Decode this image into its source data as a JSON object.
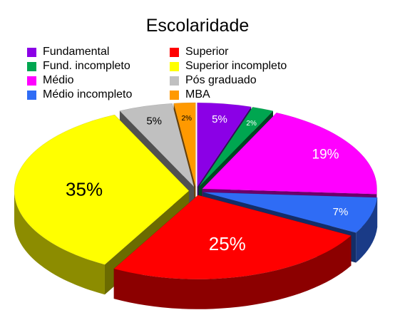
{
  "chart_data": {
    "type": "pie",
    "title": "Escolaridade",
    "legend_position": "top",
    "categories": [
      "Fundamental",
      "Fund. incompleto",
      "Médio",
      "Médio incompleto",
      "Superior",
      "Superior incompleto",
      "Pós graduado",
      "MBA"
    ],
    "values": [
      5,
      2,
      19,
      7,
      25,
      35,
      5,
      2
    ],
    "labels": [
      "5%",
      "2%",
      "19%",
      "7%",
      "25%",
      "35%",
      "5%",
      "2%"
    ],
    "colors": [
      "#8b00e6",
      "#00a650",
      "#ff00ff",
      "#2f6cf5",
      "#ff0000",
      "#ffff00",
      "#c0c0c0",
      "#ff9900"
    ]
  }
}
